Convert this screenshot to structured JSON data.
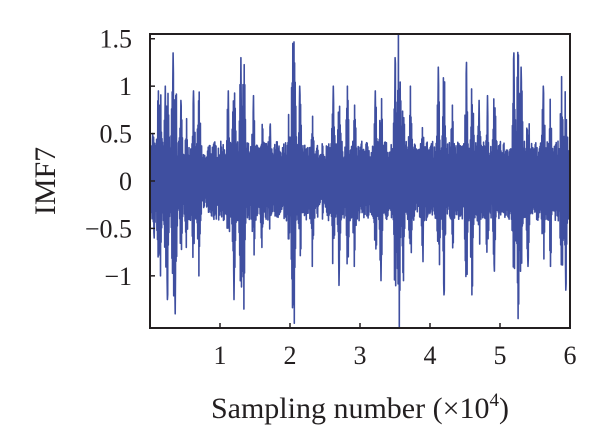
{
  "chart_data": {
    "type": "line",
    "title": "",
    "ylabel": "IMF7",
    "xlabel": {
      "text": "Sampling number (×10",
      "exponent": "4",
      "close": ")"
    },
    "xlim": [
      0,
      6
    ],
    "ylim": [
      -1.55,
      1.55
    ],
    "x_ticks": [
      1,
      2,
      3,
      4,
      5,
      6
    ],
    "x_tick_labels": [
      "1",
      "2",
      "3",
      "4",
      "5",
      "6"
    ],
    "y_ticks": [
      1.5,
      1,
      0.5,
      0,
      -0.5,
      -1
    ],
    "y_tick_labels": [
      "1.5",
      "1",
      "0.5",
      "0",
      "−0.5",
      "−1"
    ],
    "grid": false,
    "legend": "none",
    "series": [
      {
        "color": "#3f4fa0",
        "x_range": [
          0,
          6
        ],
        "peaks": [
          {
            "x": 0.04,
            "y": 0.5
          },
          {
            "x": 0.06,
            "y": -0.6
          },
          {
            "x": 0.12,
            "y": 0.95
          },
          {
            "x": 0.15,
            "y": -1.0
          },
          {
            "x": 0.22,
            "y": 1.0
          },
          {
            "x": 0.25,
            "y": -1.25
          },
          {
            "x": 0.33,
            "y": 1.35
          },
          {
            "x": 0.36,
            "y": -1.4
          },
          {
            "x": 0.44,
            "y": 0.85
          },
          {
            "x": 0.52,
            "y": -0.7
          },
          {
            "x": 0.62,
            "y": 0.95
          },
          {
            "x": 0.7,
            "y": -1.0
          },
          {
            "x": 1.12,
            "y": 0.95
          },
          {
            "x": 1.2,
            "y": -1.25
          },
          {
            "x": 1.3,
            "y": 1.3
          },
          {
            "x": 1.34,
            "y": -1.35
          },
          {
            "x": 1.48,
            "y": 0.9
          },
          {
            "x": 1.6,
            "y": -0.7
          },
          {
            "x": 1.72,
            "y": 0.6
          },
          {
            "x": 1.98,
            "y": 0.7
          },
          {
            "x": 2.04,
            "y": 1.45
          },
          {
            "x": 2.06,
            "y": -1.5
          },
          {
            "x": 2.14,
            "y": 1.0
          },
          {
            "x": 2.32,
            "y": -0.9
          },
          {
            "x": 2.62,
            "y": 1.0
          },
          {
            "x": 2.7,
            "y": -1.1
          },
          {
            "x": 2.82,
            "y": 1.0
          },
          {
            "x": 2.92,
            "y": -0.9
          },
          {
            "x": 3.22,
            "y": 0.95
          },
          {
            "x": 3.3,
            "y": -1.05
          },
          {
            "x": 3.5,
            "y": 1.3
          },
          {
            "x": 3.55,
            "y": 1.55
          },
          {
            "x": 3.56,
            "y": -1.55
          },
          {
            "x": 3.62,
            "y": -1.05
          },
          {
            "x": 3.72,
            "y": 1.0
          },
          {
            "x": 3.9,
            "y": -0.85
          },
          {
            "x": 4.12,
            "y": 1.2
          },
          {
            "x": 4.2,
            "y": -1.2
          },
          {
            "x": 4.32,
            "y": 0.8
          },
          {
            "x": 4.52,
            "y": 1.25
          },
          {
            "x": 4.6,
            "y": -1.2
          },
          {
            "x": 4.7,
            "y": 0.85
          },
          {
            "x": 4.82,
            "y": 0.9
          },
          {
            "x": 4.92,
            "y": -0.95
          },
          {
            "x": 5.2,
            "y": 1.35
          },
          {
            "x": 5.26,
            "y": -1.45
          },
          {
            "x": 5.3,
            "y": 1.2
          },
          {
            "x": 5.4,
            "y": -0.9
          },
          {
            "x": 5.62,
            "y": 1.0
          },
          {
            "x": 5.72,
            "y": -0.9
          },
          {
            "x": 5.88,
            "y": 1.1
          },
          {
            "x": 5.94,
            "y": -1.15
          }
        ],
        "quiet_intervals": [
          [
            0.74,
            0.82
          ],
          [
            2.4,
            2.46
          ],
          [
            2.48,
            2.52
          ]
        ]
      }
    ]
  }
}
